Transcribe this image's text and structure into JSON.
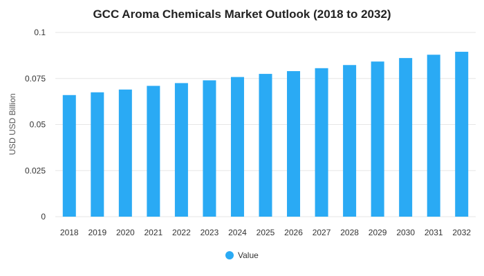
{
  "chart_data": {
    "type": "bar",
    "title": "GCC Aroma Chemicals Market Outlook (2018 to 2032)",
    "xlabel": "",
    "ylabel": "USD USD Billion",
    "categories": [
      "2018",
      "2019",
      "2020",
      "2021",
      "2022",
      "2023",
      "2024",
      "2025",
      "2026",
      "2027",
      "2028",
      "2029",
      "2030",
      "2031",
      "2032"
    ],
    "series": [
      {
        "name": "Value",
        "values": [
          0.066,
          0.0675,
          0.069,
          0.071,
          0.0725,
          0.074,
          0.0758,
          0.0775,
          0.079,
          0.0806,
          0.0823,
          0.0842,
          0.0861,
          0.0879,
          0.0895
        ]
      }
    ],
    "ylim": [
      0,
      0.1
    ],
    "yticks": [
      "0",
      "0.025",
      "0.05",
      "0.075",
      "0.1"
    ],
    "grid": true,
    "legend_position": "bottom",
    "colors": {
      "bar": "#2aaaf4"
    }
  }
}
